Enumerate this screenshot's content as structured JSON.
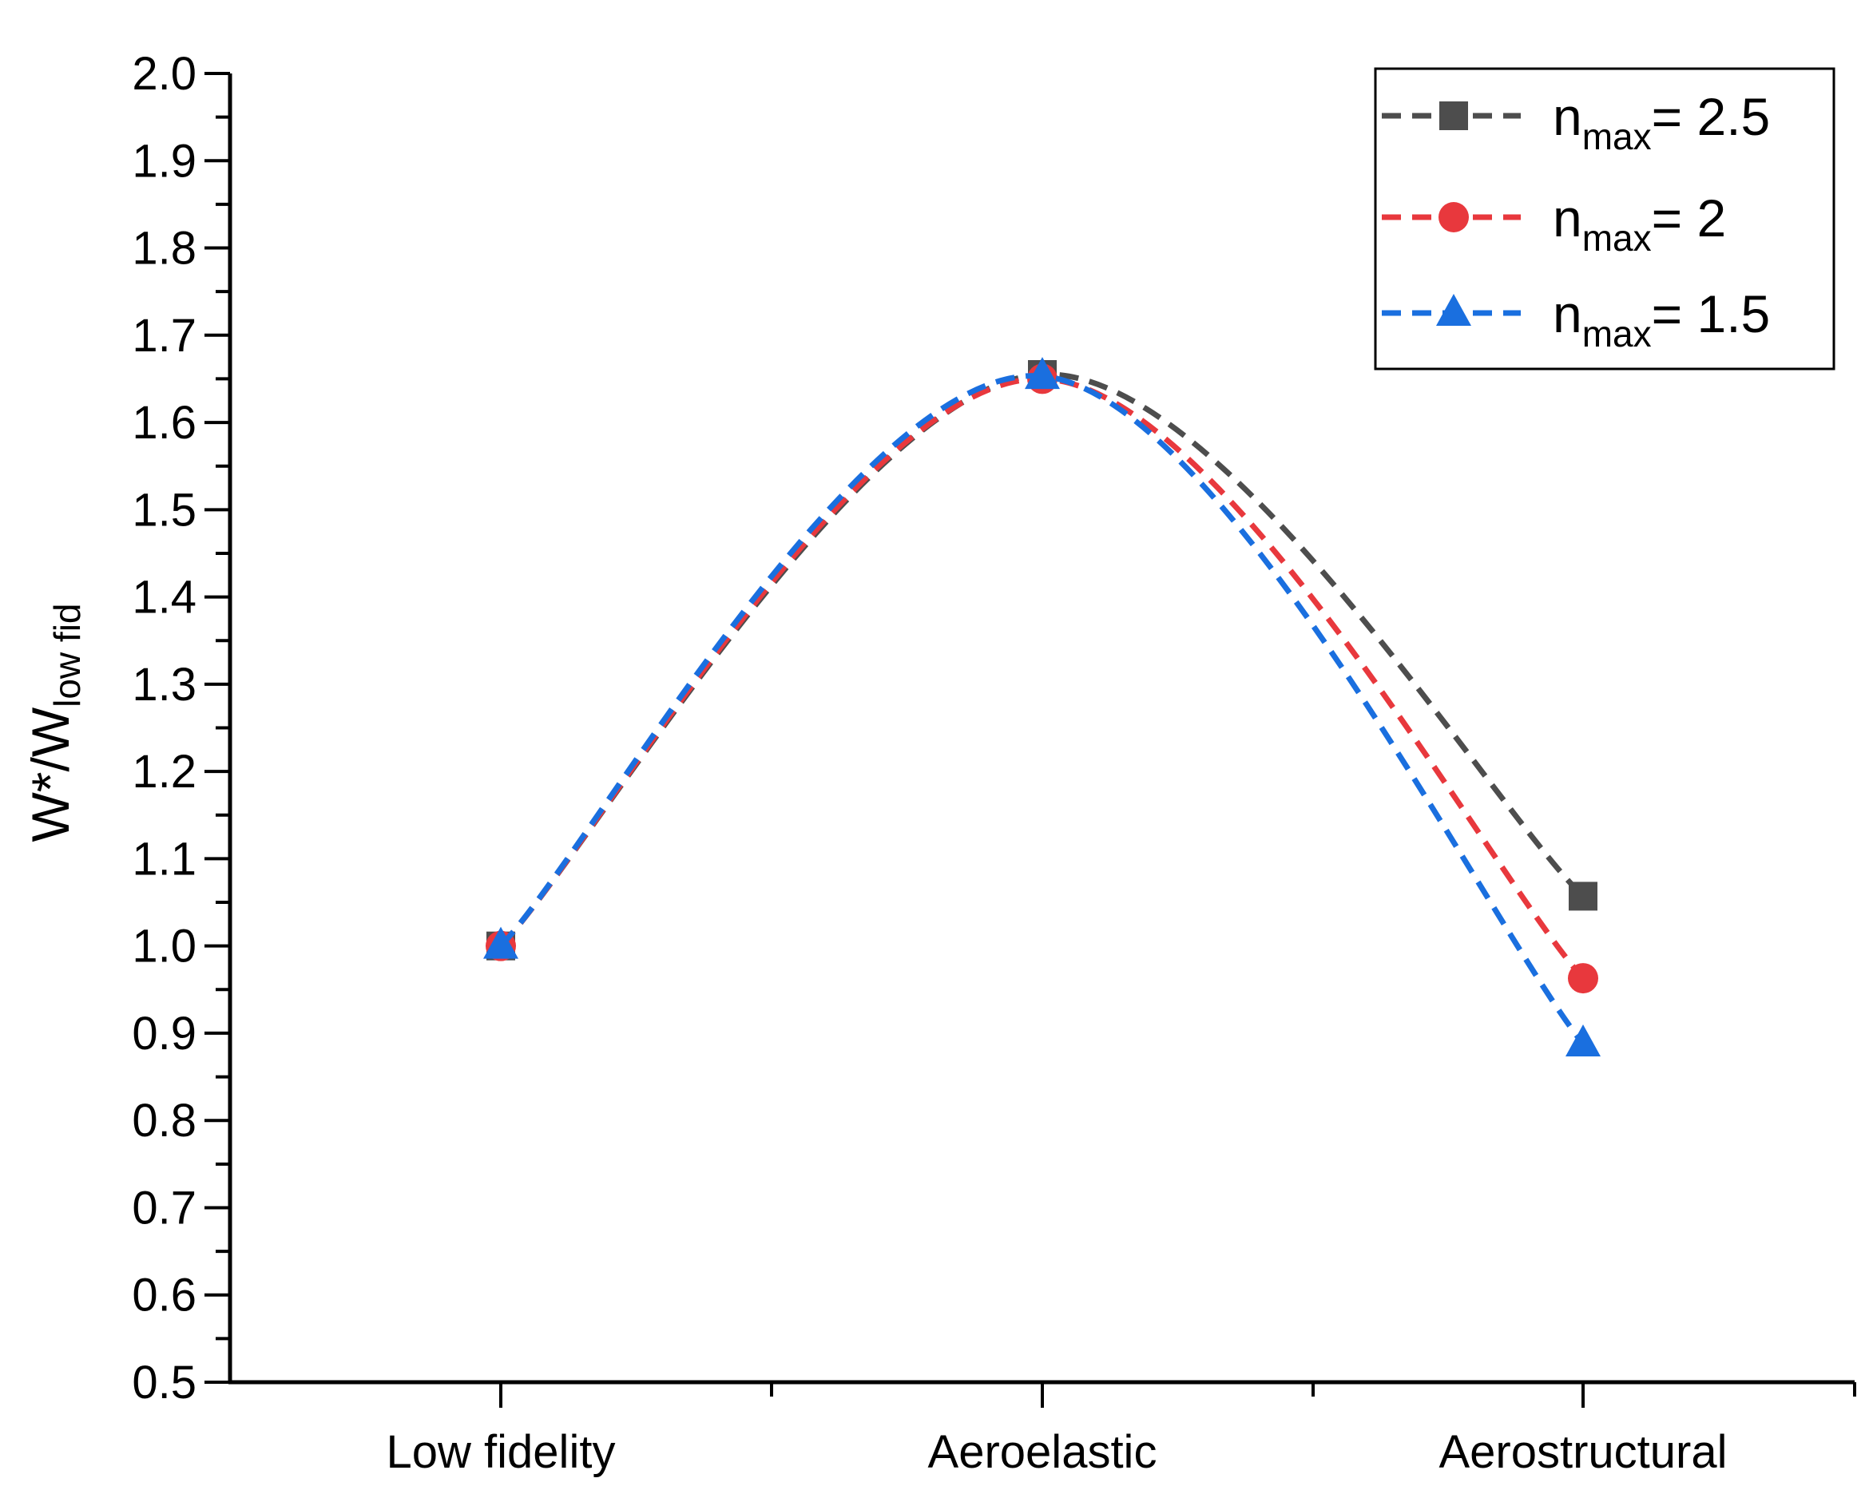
{
  "chart_data": {
    "type": "line",
    "title": "",
    "xlabel": "",
    "ylabel": {
      "main": "W*/W",
      "sub": "low fid"
    },
    "categories": [
      "Low fidelity",
      "Aeroelastic",
      "Aerostructural"
    ],
    "ylim": [
      0.5,
      2.0
    ],
    "yticks": [
      "0.5",
      "0.6",
      "0.7",
      "0.8",
      "0.9",
      "1.0",
      "1.1",
      "1.2",
      "1.3",
      "1.4",
      "1.5",
      "1.6",
      "1.7",
      "1.8",
      "1.9",
      "2.0"
    ],
    "grid": false,
    "legend_position": "top-right",
    "series": [
      {
        "name": "n_max = 2.5",
        "label_main": "n",
        "label_sub": "max",
        "label_rest": "= 2.5",
        "color": "#4d4d4d",
        "marker": "square",
        "values": [
          1.0,
          1.655,
          1.057
        ]
      },
      {
        "name": "n_max = 2",
        "label_main": "n",
        "label_sub": "max",
        "label_rest": "= 2",
        "color": "#e8383d",
        "marker": "circle",
        "values": [
          1.0,
          1.65,
          0.963
        ]
      },
      {
        "name": "n_max = 1.5",
        "label_main": "n",
        "label_sub": "max",
        "label_rest": "= 1.5",
        "color": "#1a6fdf",
        "marker": "triangle",
        "values": [
          1.0,
          1.653,
          0.888
        ]
      }
    ]
  }
}
